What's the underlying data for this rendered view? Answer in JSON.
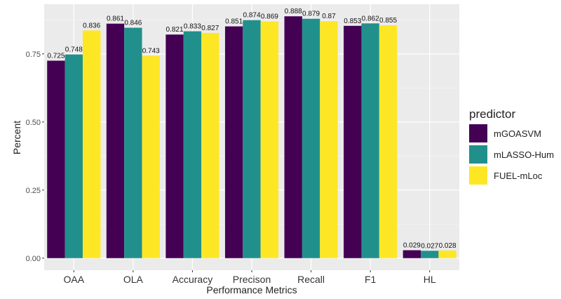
{
  "chart_data": {
    "type": "bar",
    "xlabel": "Performance Metrics",
    "ylabel": "Percent",
    "categories": [
      "OAA",
      "OLA",
      "Accuracy",
      "Precison",
      "Recall",
      "F1",
      "HL"
    ],
    "series": [
      {
        "name": "mGOASVM",
        "color": "#440154",
        "values": [
          0.725,
          0.861,
          0.821,
          0.851,
          0.888,
          0.853,
          0.029
        ],
        "labels": [
          "0.725",
          "0.861",
          "0.821",
          "0.851",
          "0.888",
          "0.853",
          "0.029"
        ]
      },
      {
        "name": "mLASSO-Hum",
        "color": "#21908C",
        "values": [
          0.748,
          0.846,
          0.833,
          0.874,
          0.879,
          0.862,
          0.027
        ],
        "labels": [
          "0.748",
          "0.846",
          "0.833",
          "0.874",
          "0.879",
          "0.862",
          "0.027"
        ]
      },
      {
        "name": "FUEL-mLoc",
        "color": "#FDE725",
        "values": [
          0.836,
          0.743,
          0.827,
          0.869,
          0.87,
          0.855,
          0.028
        ],
        "labels": [
          "0.836",
          "0.743",
          "0.827",
          "0.869",
          "0.87",
          "0.855",
          "0.028"
        ]
      }
    ],
    "yticks": [
      0,
      0.25,
      0.5,
      0.75
    ],
    "ytick_labels": [
      "0.00",
      "0.25",
      "0.50",
      "0.75"
    ],
    "ylim": [
      -0.0444,
      0.9324
    ],
    "legend_title": "predictor",
    "legend_position": "right",
    "grid": true,
    "panel_background": "#EBEBEB"
  }
}
